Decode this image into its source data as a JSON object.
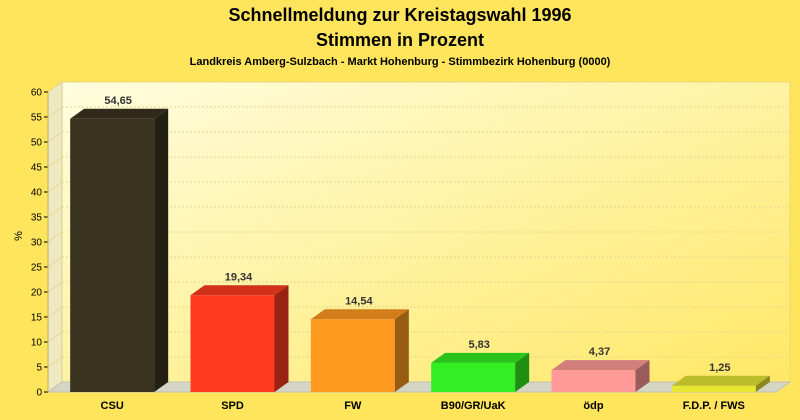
{
  "chart_data": {
    "type": "bar",
    "title": "Schnellmeldung zur Kreistagswahl 1996",
    "title2": "Stimmen in Prozent",
    "subtitle": "Landkreis Amberg-Sulzbach - Markt Hohenburg - Stimmbezirk Hohenburg (0000)",
    "ylabel": "%",
    "ylim": [
      0,
      60
    ],
    "yticks": [
      0,
      5,
      10,
      15,
      20,
      25,
      30,
      35,
      40,
      45,
      50,
      55,
      60
    ],
    "grid": true,
    "categories": [
      "CSU",
      "SPD",
      "FW",
      "B90/GR/UaK",
      "ödp",
      "F.D.P. / FWS"
    ],
    "values": [
      54.65,
      19.34,
      14.54,
      5.83,
      4.37,
      1.25
    ],
    "value_labels": [
      "54,65",
      "19,34",
      "14,54",
      "5,83",
      "4,37",
      "1,25"
    ],
    "colors": [
      "#3a3320",
      "#ff3a1e",
      "#ff9a20",
      "#33ee22",
      "#ff9a98",
      "#e6e633"
    ]
  }
}
